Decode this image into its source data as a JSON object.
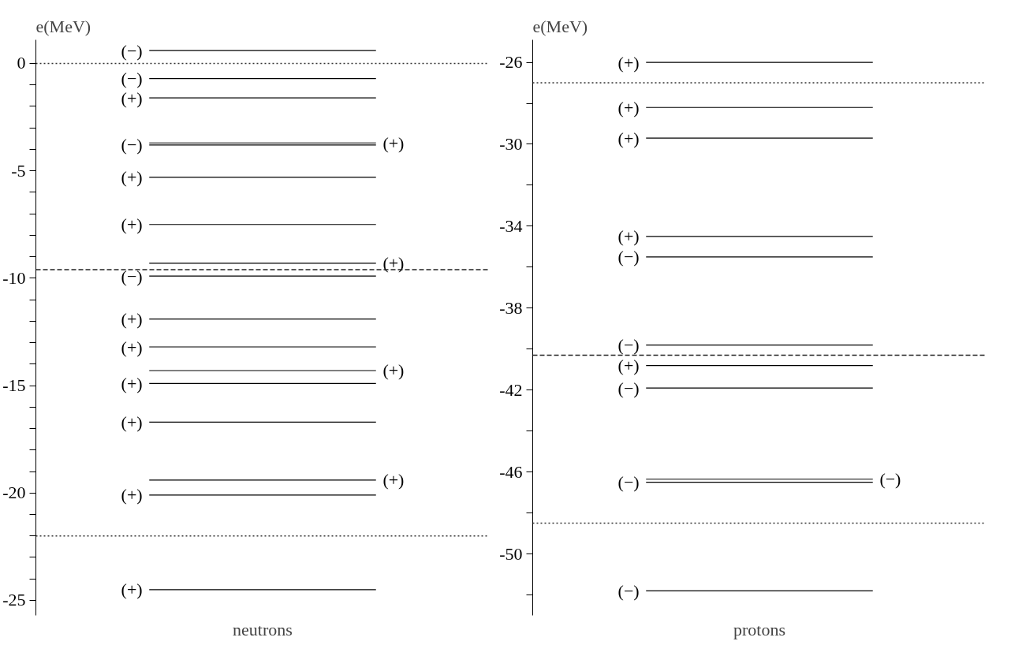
{
  "chart_data": [
    {
      "type": "line",
      "ylabel": "e(MeV)",
      "xlabel": "neutrons",
      "categories": [
        null,
        null
      ],
      "ylim": [
        -25.7,
        1.1
      ],
      "yticks": [
        {
          "value": -25,
          "label": "-25"
        },
        {
          "value": -24,
          "label": null
        },
        {
          "value": -23,
          "label": null
        },
        {
          "value": -22,
          "label": null
        },
        {
          "value": -21,
          "label": null
        },
        {
          "value": -20,
          "label": "-20"
        },
        {
          "value": -19,
          "label": null
        },
        {
          "value": -18,
          "label": null
        },
        {
          "value": -17,
          "label": null
        },
        {
          "value": -16,
          "label": null
        },
        {
          "value": -15,
          "label": "-15"
        },
        {
          "value": -14,
          "label": null
        },
        {
          "value": -13,
          "label": null
        },
        {
          "value": -12,
          "label": null
        },
        {
          "value": -11,
          "label": null
        },
        {
          "value": -10,
          "label": "-10"
        },
        {
          "value": -9,
          "label": null
        },
        {
          "value": -8,
          "label": null
        },
        {
          "value": -7,
          "label": null
        },
        {
          "value": -6,
          "label": null
        },
        {
          "value": -5,
          "label": "-5"
        },
        {
          "value": -4,
          "label": null
        },
        {
          "value": -3,
          "label": null
        },
        {
          "value": -2,
          "label": null
        },
        {
          "value": -1,
          "label": null
        },
        {
          "value": 0,
          "label": "0"
        }
      ],
      "tick_labels": "y",
      "annotations": [
        "(+)",
        "(+)",
        "(+)",
        "(+)"
      ],
      "series": [
        {
          "name": "(−)",
          "color": "#000000",
          "values": [
            0.6,
            0.6
          ]
        },
        {
          "name": "(−)",
          "color": "#000000",
          "values": [
            -0.7,
            -0.7
          ]
        },
        {
          "name": "(+)",
          "color": "#000000",
          "values": [
            -1.6,
            -1.6
          ]
        },
        {
          "name": "(−)",
          "color": "#000000",
          "values": [
            -3.8,
            -3.8
          ]
        },
        {
          "color": "#000000",
          "values": [
            -3.7,
            -3.7
          ]
        },
        {
          "name": "(+)",
          "color": "#000000",
          "values": [
            -5.3,
            -5.3
          ]
        },
        {
          "name": "(+)",
          "color": "#000000",
          "values": [
            -7.5,
            -7.5
          ]
        },
        {
          "color": "#000000",
          "values": [
            -9.3,
            -9.3
          ]
        },
        {
          "name": "(−)",
          "color": "#000000",
          "values": [
            -9.9,
            -9.9
          ]
        },
        {
          "name": "(+)",
          "color": "#000000",
          "values": [
            -11.9,
            -11.9
          ]
        },
        {
          "name": "(+)",
          "color": "#000000",
          "values": [
            -13.2,
            -13.2
          ]
        },
        {
          "color": "#000000",
          "values": [
            -14.3,
            -14.3
          ]
        },
        {
          "name": "(+)",
          "color": "#000000",
          "values": [
            -14.9,
            -14.9
          ]
        },
        {
          "name": "(+)",
          "color": "#000000",
          "values": [
            -16.7,
            -16.7
          ]
        },
        {
          "color": "#000000",
          "values": [
            -19.4,
            -19.4
          ]
        },
        {
          "name": "(+)",
          "color": "#000000",
          "values": [
            -20.1,
            -20.1
          ]
        },
        {
          "name": "(+)",
          "color": "#000000",
          "values": [
            -24.5,
            -24.5
          ]
        }
      ],
      "ref_lines": [
        {
          "axis": "y",
          "value": 0,
          "color": "#333333",
          "line_style": "dotted"
        },
        {
          "axis": "y",
          "value": -9.6,
          "color": "#222222",
          "line_style": "dashed"
        },
        {
          "axis": "y",
          "value": -22,
          "color": "#333333",
          "line_style": "dotted"
        }
      ]
    },
    {
      "type": "line",
      "ylabel": "e(MeV)",
      "xlabel": "protons",
      "categories": [
        null,
        null
      ],
      "ylim": [
        -53.0,
        -24.9
      ],
      "yticks": [
        {
          "value": -52,
          "label": null
        },
        {
          "value": -50,
          "label": "-50"
        },
        {
          "value": -48,
          "label": null
        },
        {
          "value": -46,
          "label": "-46"
        },
        {
          "value": -44,
          "label": null
        },
        {
          "value": -42,
          "label": "-42"
        },
        {
          "value": -40,
          "label": null
        },
        {
          "value": -38,
          "label": "-38"
        },
        {
          "value": -36,
          "label": null
        },
        {
          "value": -34,
          "label": "-34"
        },
        {
          "value": -32,
          "label": null
        },
        {
          "value": -30,
          "label": "-30"
        },
        {
          "value": -28,
          "label": null
        },
        {
          "value": -26,
          "label": "-26"
        }
      ],
      "tick_labels": "y",
      "annotations": [
        "(−)"
      ],
      "series": [
        {
          "name": "(+)",
          "color": "#000000",
          "values": [
            -26.0,
            -26.0
          ]
        },
        {
          "name": "(+)",
          "color": "#000000",
          "values": [
            -28.2,
            -28.2
          ]
        },
        {
          "name": "(+)",
          "color": "#000000",
          "values": [
            -29.7,
            -29.7
          ]
        },
        {
          "name": "(+)",
          "color": "#000000",
          "values": [
            -34.5,
            -34.5
          ]
        },
        {
          "name": "(−)",
          "color": "#000000",
          "values": [
            -35.5,
            -35.5
          ]
        },
        {
          "name": "(−)",
          "color": "#000000",
          "values": [
            -39.8,
            -39.8
          ]
        },
        {
          "name": "(+)",
          "color": "#000000",
          "values": [
            -40.8,
            -40.8
          ]
        },
        {
          "name": "(−)",
          "color": "#000000",
          "values": [
            -41.9,
            -41.9
          ]
        },
        {
          "name": "(−)",
          "color": "#000000",
          "values": [
            -46.5,
            -46.5
          ]
        },
        {
          "color": "#000000",
          "values": [
            -46.35,
            -46.35
          ]
        },
        {
          "name": "(−)",
          "color": "#000000",
          "values": [
            -51.8,
            -51.8
          ]
        }
      ],
      "ref_lines": [
        {
          "axis": "y",
          "value": -27.0,
          "color": "#333333",
          "line_style": "dotted"
        },
        {
          "axis": "y",
          "value": -40.3,
          "color": "#222222",
          "line_style": "dashed"
        },
        {
          "axis": "y",
          "value": -48.5,
          "color": "#333333",
          "line_style": "dotted"
        }
      ]
    }
  ]
}
